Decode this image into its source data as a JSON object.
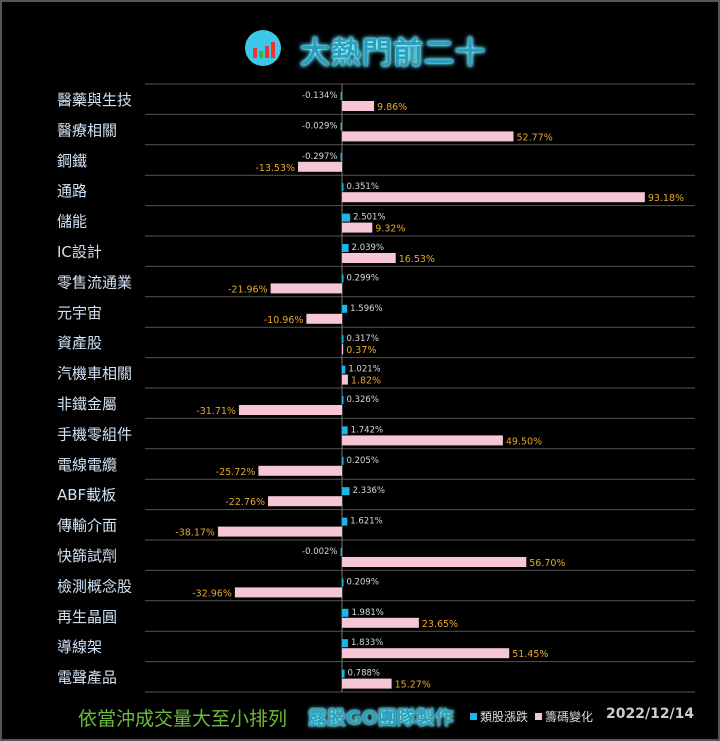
{
  "header": {
    "title": "大熱門前二十",
    "logo_text": "露股GO"
  },
  "footer": {
    "note": "依當沖成交量大至小排列",
    "team": "露股GO團隊製作",
    "date": "2022/12/14"
  },
  "colors": {
    "sector_change": "#1fb4e8",
    "chip_change": "#f7c6d4",
    "chip_label": "#e8a828"
  },
  "chart_data": {
    "type": "bar",
    "orientation": "horizontal",
    "legend_position": "bottom",
    "categories": [
      "醫藥與生技",
      "醫療相關",
      "鋼鐵",
      "通路",
      "儲能",
      "IC設計",
      "零售流通業",
      "元宇宙",
      "資產股",
      "汽機車相關",
      "非鐵金屬",
      "手機零組件",
      "電線電纜",
      "ABF載板",
      "傳輸介面",
      "快篩試劑",
      "檢測概念股",
      "再生晶圓",
      "導線架",
      "電聲產品"
    ],
    "series": [
      {
        "name": "類股漲跌",
        "color": "#1fb4e8",
        "values": [
          -0.134,
          -0.029,
          -0.297,
          0.351,
          2.501,
          2.039,
          0.299,
          1.596,
          0.317,
          1.021,
          0.326,
          1.742,
          0.205,
          2.336,
          1.621,
          -0.002,
          0.209,
          1.981,
          1.833,
          0.788
        ],
        "labels": [
          "-0.134%",
          "-0.029%",
          "-0.297%",
          "0.351%",
          "2.501%",
          "2.039%",
          "0.299%",
          "1.596%",
          "0.317%",
          "1.021%",
          "0.326%",
          "1.742%",
          "0.205%",
          "2.336%",
          "1.621%",
          "-0.002%",
          "0.209%",
          "1.981%",
          "1.833%",
          "0.788%"
        ]
      },
      {
        "name": "籌碼變化",
        "color": "#f7c6d4",
        "values": [
          9.86,
          52.77,
          -13.53,
          93.18,
          9.32,
          16.53,
          -21.96,
          -10.96,
          0.37,
          1.82,
          -31.71,
          49.5,
          -25.72,
          -22.76,
          -38.17,
          56.7,
          -32.96,
          23.65,
          51.45,
          15.27
        ],
        "labels": [
          "9.86%",
          "52.77%",
          "-13.53%",
          "93.18%",
          "9.32%",
          "16.53%",
          "-21.96%",
          "-10.96%",
          "0.37%",
          "1.82%",
          "-31.71%",
          "49.50%",
          "-25.72%",
          "-22.76%",
          "-38.17%",
          "56.70%",
          "-32.96%",
          "23.65%",
          "51.45%",
          "15.27%"
        ]
      }
    ],
    "grid": true
  }
}
